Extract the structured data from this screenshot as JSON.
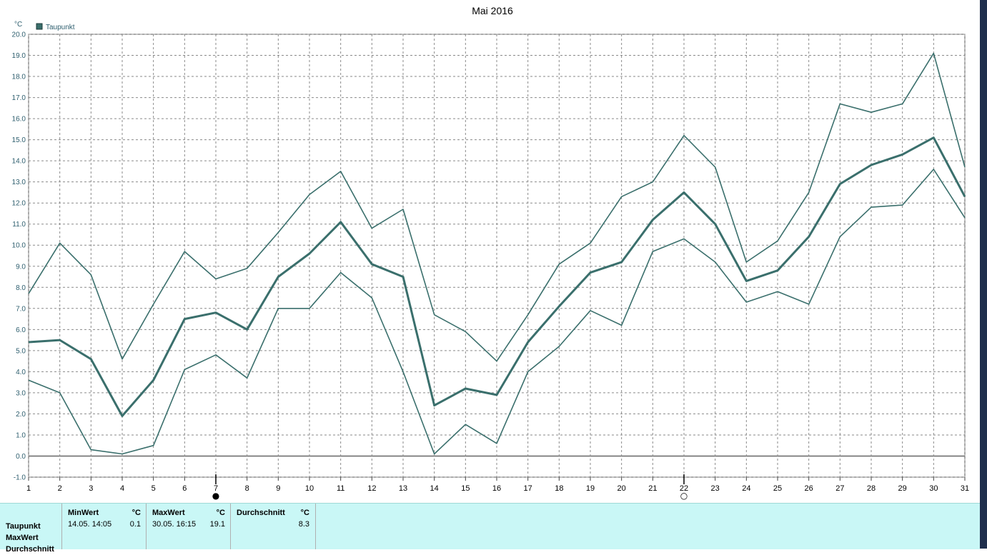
{
  "chart_data": {
    "type": "line",
    "title": "Mai 2016",
    "ylabel": "°C",
    "ylim": [
      -1,
      20
    ],
    "legend": {
      "label": "Taupunkt",
      "placement": "top-left",
      "color": "#3a6f6c"
    },
    "grid": true,
    "x": [
      1,
      2,
      3,
      4,
      5,
      6,
      7,
      8,
      9,
      10,
      11,
      12,
      13,
      14,
      15,
      16,
      17,
      18,
      19,
      20,
      21,
      22,
      23,
      24,
      25,
      26,
      27,
      28,
      29,
      30,
      31
    ],
    "y_ticks": [
      "-1.0",
      "0.0",
      "1.0",
      "2.0",
      "3.0",
      "4.0",
      "5.0",
      "6.0",
      "7.0",
      "8.0",
      "9.0",
      "10.0",
      "11.0",
      "12.0",
      "13.0",
      "14.0",
      "15.0",
      "16.0",
      "17.0",
      "18.0",
      "19.0",
      "20.0"
    ],
    "series": [
      {
        "role": "max",
        "values": [
          7.7,
          10.1,
          8.6,
          4.6,
          7.2,
          9.7,
          8.4,
          8.9,
          10.6,
          12.4,
          13.5,
          10.8,
          11.7,
          6.7,
          5.9,
          4.5,
          6.7,
          9.1,
          10.1,
          12.3,
          13.0,
          15.2,
          13.7,
          9.2,
          10.2,
          12.5,
          16.7,
          16.3,
          16.7,
          19.1,
          13.7
        ]
      },
      {
        "role": "mean",
        "values": [
          5.4,
          5.5,
          4.6,
          1.9,
          3.6,
          6.5,
          6.8,
          6.0,
          8.5,
          9.6,
          11.1,
          9.1,
          8.5,
          2.4,
          3.2,
          2.9,
          5.4,
          7.1,
          8.7,
          9.2,
          11.2,
          12.5,
          11.0,
          8.3,
          8.8,
          10.4,
          12.9,
          13.8,
          14.3,
          15.1,
          12.3
        ]
      },
      {
        "role": "min",
        "values": [
          3.6,
          3.0,
          0.3,
          0.1,
          0.5,
          4.1,
          4.8,
          3.7,
          7.0,
          7.0,
          8.7,
          7.5,
          4.0,
          0.1,
          1.5,
          0.6,
          4.0,
          5.2,
          6.9,
          6.2,
          9.7,
          10.3,
          9.2,
          7.3,
          7.8,
          7.2,
          10.4,
          11.8,
          11.9,
          13.6,
          11.3
        ]
      }
    ],
    "moon_phases": [
      {
        "day": 7,
        "symbol": "●"
      },
      {
        "day": 22,
        "symbol": "○"
      }
    ],
    "line_color": "#3a6f6c"
  },
  "panel": {
    "row_labels": [
      "Taupunkt",
      "MaxWert",
      "Durchschnitt"
    ],
    "columns": [
      {
        "header": "MinWert",
        "unit": "°C",
        "time": "14.05.  14:05",
        "value": "0.1"
      },
      {
        "header": "MaxWert",
        "unit": "°C",
        "time": "30.05.  16:15",
        "value": "19.1"
      },
      {
        "header": "Durchschnitt",
        "unit": "°C",
        "time": "",
        "value": "8.3"
      }
    ]
  }
}
